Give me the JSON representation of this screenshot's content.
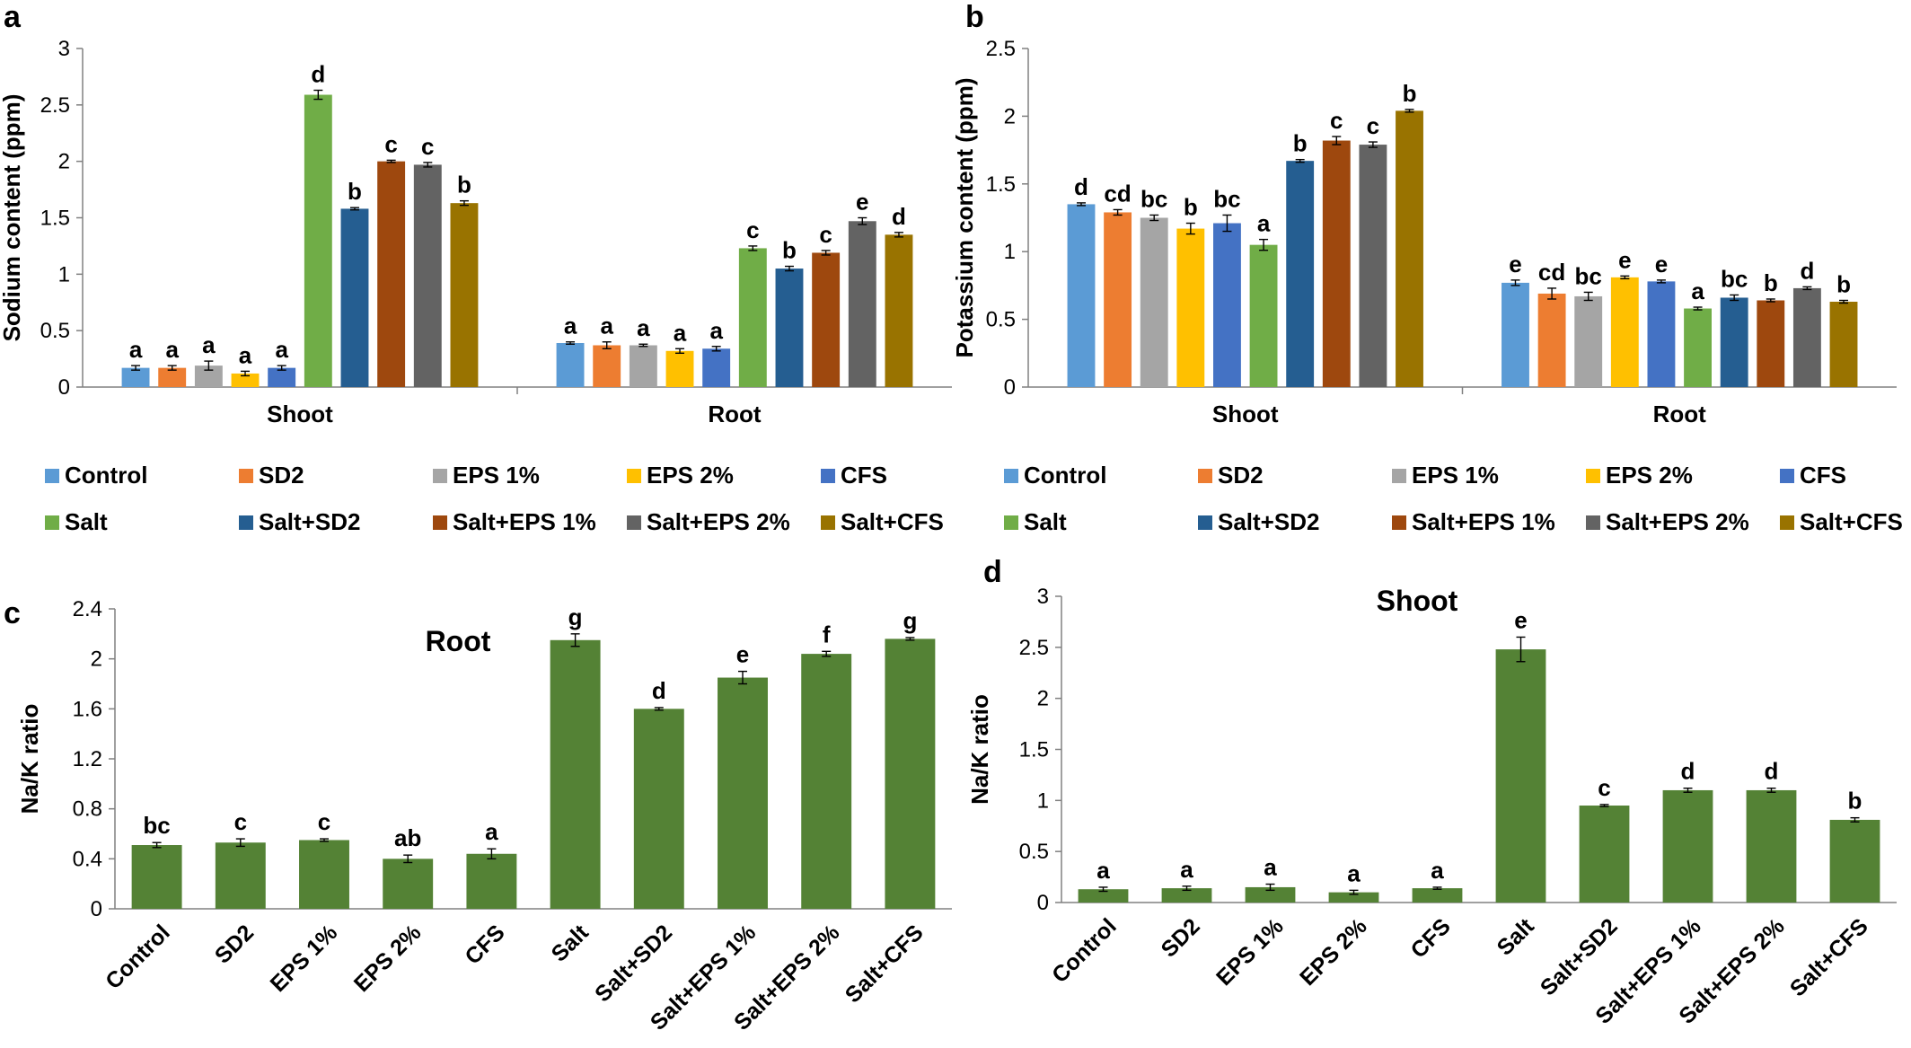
{
  "treatments": [
    "Control",
    "SD2",
    "EPS 1%",
    "EPS 2%",
    "CFS",
    "Salt",
    "Salt+SD2",
    "Salt+EPS 1%",
    "Salt+EPS 2%",
    "Salt+CFS"
  ],
  "colors": [
    "#5b9bd5",
    "#ed7d31",
    "#a5a5a5",
    "#ffc000",
    "#4472c4",
    "#70ad47",
    "#255e91",
    "#9e480e",
    "#636363",
    "#997300"
  ],
  "bar_color_green": "#548235",
  "chart_data": [
    {
      "panel": "a",
      "type": "bar",
      "ylabel": "Sodium content (ppm)",
      "ylim": [
        0,
        3
      ],
      "yticks": [
        "0",
        "0.5",
        "1",
        "1.5",
        "2",
        "2.5",
        "3"
      ],
      "ytick_values": [
        0,
        0.5,
        1,
        1.5,
        2,
        2.5,
        3
      ],
      "groups": [
        "Shoot",
        "Root"
      ],
      "series_values": [
        [
          0.17,
          0.17,
          0.19,
          0.12,
          0.17,
          2.59,
          1.58,
          2.0,
          1.97,
          1.63
        ],
        [
          0.39,
          0.37,
          0.37,
          0.32,
          0.34,
          1.23,
          1.05,
          1.19,
          1.47,
          1.35
        ]
      ],
      "errors": [
        [
          0.02,
          0.02,
          0.04,
          0.02,
          0.02,
          0.04,
          0.01,
          0.01,
          0.02,
          0.02
        ],
        [
          0.01,
          0.03,
          0.01,
          0.02,
          0.02,
          0.02,
          0.02,
          0.02,
          0.03,
          0.02
        ]
      ],
      "letters": [
        [
          "a",
          "a",
          "a",
          "a",
          "a",
          "d",
          "b",
          "c",
          "c",
          "b"
        ],
        [
          "a",
          "a",
          "a",
          "a",
          "a",
          "c",
          "b",
          "c",
          "e",
          "d"
        ]
      ],
      "legend_placement": "bottom"
    },
    {
      "panel": "b",
      "type": "bar",
      "ylabel": "Potassium content (ppm)",
      "ylim": [
        0,
        2.5
      ],
      "yticks": [
        "0",
        "0.5",
        "1",
        "1.5",
        "2",
        "2.5"
      ],
      "ytick_values": [
        0,
        0.5,
        1,
        1.5,
        2,
        2.5
      ],
      "groups": [
        "Shoot",
        "Root"
      ],
      "series_values": [
        [
          1.35,
          1.29,
          1.25,
          1.17,
          1.21,
          1.05,
          1.67,
          1.82,
          1.79,
          2.04
        ],
        [
          0.77,
          0.69,
          0.67,
          0.81,
          0.78,
          0.58,
          0.66,
          0.64,
          0.73,
          0.63
        ]
      ],
      "errors": [
        [
          0.01,
          0.02,
          0.02,
          0.04,
          0.06,
          0.04,
          0.01,
          0.03,
          0.02,
          0.01
        ],
        [
          0.02,
          0.04,
          0.03,
          0.01,
          0.01,
          0.01,
          0.02,
          0.01,
          0.01,
          0.01
        ]
      ],
      "letters": [
        [
          "d",
          "cd",
          "bc",
          "b",
          "bc",
          "a",
          "b",
          "c",
          "c",
          "b"
        ],
        [
          "e",
          "cd",
          "bc",
          "e",
          "e",
          "a",
          "bc",
          "b",
          "d",
          "b"
        ]
      ],
      "legend_placement": "bottom"
    },
    {
      "panel": "c",
      "type": "bar",
      "title": "Root",
      "ylabel": "Na/K ratio",
      "ylim": [
        0,
        2.4
      ],
      "yticks": [
        "0",
        "0.4",
        "0.8",
        "1.2",
        "1.6",
        "2",
        "2.4"
      ],
      "ytick_values": [
        0,
        0.4,
        0.8,
        1.2,
        1.6,
        2,
        2.4
      ],
      "values": [
        0.51,
        0.53,
        0.55,
        0.4,
        0.44,
        2.15,
        1.6,
        1.85,
        2.04,
        2.16
      ],
      "errors": [
        0.02,
        0.03,
        0.01,
        0.03,
        0.04,
        0.05,
        0.01,
        0.05,
        0.02,
        0.01
      ],
      "letters": [
        "bc",
        "c",
        "c",
        "ab",
        "a",
        "g",
        "d",
        "e",
        "f",
        "g"
      ]
    },
    {
      "panel": "d",
      "type": "bar",
      "title": "Shoot",
      "ylabel": "Na/K ratio",
      "ylim": [
        0,
        3
      ],
      "yticks": [
        "0",
        "0.5",
        "1",
        "1.5",
        "2",
        "2.5",
        "3"
      ],
      "ytick_values": [
        0,
        0.5,
        1,
        1.5,
        2,
        2.5,
        3
      ],
      "values": [
        0.13,
        0.14,
        0.15,
        0.1,
        0.14,
        2.48,
        0.95,
        1.1,
        1.1,
        0.81
      ],
      "errors": [
        0.02,
        0.02,
        0.03,
        0.02,
        0.01,
        0.12,
        0.01,
        0.02,
        0.02,
        0.02
      ],
      "letters": [
        "a",
        "a",
        "a",
        "a",
        "a",
        "e",
        "c",
        "d",
        "d",
        "b"
      ]
    }
  ]
}
